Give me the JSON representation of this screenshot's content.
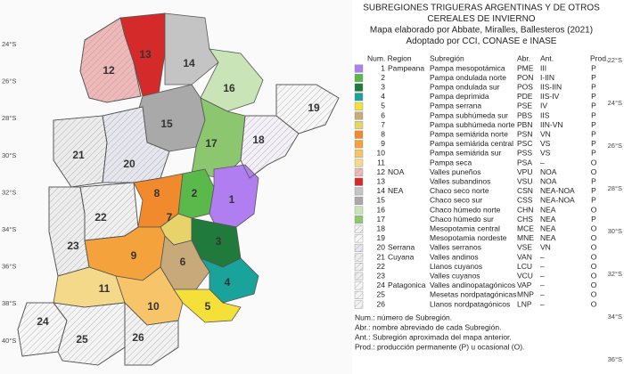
{
  "title_lines": [
    "SUBREGIONES TRIGUERAS ARGENTINAS Y DE OTROS",
    "CEREALES DE INVIERNO",
    "Mapa elaborado por Abbate, Miralles, Ballesteros (2021)",
    "Adoptado por CCI, CONASE e INASE"
  ],
  "legend": {
    "header": {
      "num_region": "Num. Region",
      "subregion": "Subregión",
      "abr": "Abr.",
      "ant": "Ant.",
      "prod": "Prod."
    },
    "rows": [
      {
        "num": "1",
        "region": "Pampeana",
        "subregion": "Pampa mesopotámica",
        "abr": "PME",
        "ant": "III",
        "prod": "P",
        "color": "#b07ef0"
      },
      {
        "num": "2",
        "subregion": "Pampa ondulada norte",
        "abr": "PON",
        "ant": "I-IIN",
        "prod": "P",
        "color": "#5bb84a"
      },
      {
        "num": "3",
        "subregion": "Pampa ondulada sur",
        "abr": "POS",
        "ant": "IIS-IIN",
        "prod": "P",
        "color": "#1f7a3c"
      },
      {
        "num": "4",
        "subregion": "Pampa deprimida",
        "abr": "PDE",
        "ant": "IIS-IV",
        "prod": "P",
        "color": "#1aa39a"
      },
      {
        "num": "5",
        "subregion": "Pampa serrana",
        "abr": "PSE",
        "ant": "IV",
        "prod": "P",
        "color": "#f5e03a"
      },
      {
        "num": "6",
        "subregion": "Pampa subhúmeda sur",
        "abr": "PBS",
        "ant": "IIS",
        "prod": "P",
        "color": "#c8a97a"
      },
      {
        "num": "7",
        "subregion": "Pampa subhúmeda norte",
        "abr": "PBN",
        "ant": "IIN-VN",
        "prod": "P",
        "color": "#e8d36a"
      },
      {
        "num": "8",
        "subregion": "Pampa semiárida norte",
        "abr": "PSN",
        "ant": "VN",
        "prod": "P",
        "color": "#f08a2c"
      },
      {
        "num": "9",
        "subregion": "Pampa semiárida central",
        "abr": "PSC",
        "ant": "VS",
        "prod": "P",
        "color": "#f4a23c"
      },
      {
        "num": "10",
        "subregion": "Pampa semiárida sur",
        "abr": "PSS",
        "ant": "VS",
        "prod": "P",
        "color": "#f7c46a"
      },
      {
        "num": "11",
        "subregion": "Pampa seca",
        "abr": "PSA",
        "ant": "–",
        "prod": "O",
        "color": "#f5d98a"
      },
      {
        "num": "12",
        "region": "NOA",
        "subregion": "Valles puneños",
        "abr": "VPU",
        "ant": "NOA",
        "prod": "O",
        "color": "#f0b8b8"
      },
      {
        "num": "13",
        "subregion": "Valles subandinos",
        "abr": "VSU",
        "ant": "NOA",
        "prod": "P",
        "color": "#d42a2a"
      },
      {
        "num": "14",
        "region": "NEA",
        "subregion": "Chaco seco norte",
        "abr": "CSN",
        "ant": "NEA-NOA",
        "prod": "P",
        "color": "#c4c4c4"
      },
      {
        "num": "15",
        "subregion": "Chaco seco sur",
        "abr": "CSS",
        "ant": "NEA-NOA",
        "prod": "P",
        "color": "#a9a9a9"
      },
      {
        "num": "16",
        "subregion": "Chaco húmedo norte",
        "abr": "CHN",
        "ant": "NEA",
        "prod": "O",
        "color": "#c9e4b6"
      },
      {
        "num": "17",
        "subregion": "Chaco húmedo sur",
        "abr": "CHS",
        "ant": "NEA",
        "prod": "P",
        "color": "#8cc66e"
      },
      {
        "num": "18",
        "subregion": "Mesopotamia central",
        "abr": "MCE",
        "ant": "NEA",
        "prod": "O",
        "color": "#f4f0f8"
      },
      {
        "num": "19",
        "subregion": "Mesopotamia nordeste",
        "abr": "MNE",
        "ant": "NEA",
        "prod": "O",
        "color": "#f7f7f7"
      },
      {
        "num": "20",
        "region": "Serrana",
        "subregion": "Valles serranos",
        "abr": "VSE",
        "ant": "VN",
        "prod": "O",
        "color": "#e6e6ee"
      },
      {
        "num": "21",
        "region": "Cuyana",
        "subregion": "Valles andinos",
        "abr": "VAN",
        "ant": "–",
        "prod": "O",
        "color": "#ececec"
      },
      {
        "num": "22",
        "subregion": "Llanos cuyanos",
        "abr": "LCU",
        "ant": "–",
        "prod": "O",
        "color": "#f0f0f0"
      },
      {
        "num": "23",
        "subregion": "Valles cuyanos",
        "abr": "VCU",
        "ant": "–",
        "prod": "O",
        "color": "#ededed"
      },
      {
        "num": "24",
        "region": "Patagonica",
        "subregion": "Valles andinopatagónicos",
        "abr": "VAP",
        "ant": "–",
        "prod": "O",
        "color": "#f7f7f7"
      },
      {
        "num": "25",
        "subregion": "Mesetas nordpatagónicas",
        "abr": "MNP",
        "ant": "–",
        "prod": "O",
        "color": "#f4f4f4"
      },
      {
        "num": "26",
        "subregion": "Llanos nordpatagónicos",
        "abr": "LNP",
        "ant": "–",
        "prod": "O",
        "color": "#f2f2f2"
      }
    ]
  },
  "footnotes": [
    "Num.: número de Subregión.",
    "Abr.: nombre abreviado de cada Subregión.",
    "Ant.: Subregión aproximada del mapa anterior.",
    "Prod.: producción permanente (P) u ocasional (O)."
  ],
  "lat_left": [
    "24°S",
    "26°S",
    "28°S",
    "30°S",
    "32°S",
    "34°S",
    "36°S",
    "38°S",
    "40°S"
  ],
  "lat_right": [
    "22°S",
    "24°S",
    "26°S",
    "28°S",
    "30°S",
    "32°S",
    "34°S",
    "36°S"
  ]
}
